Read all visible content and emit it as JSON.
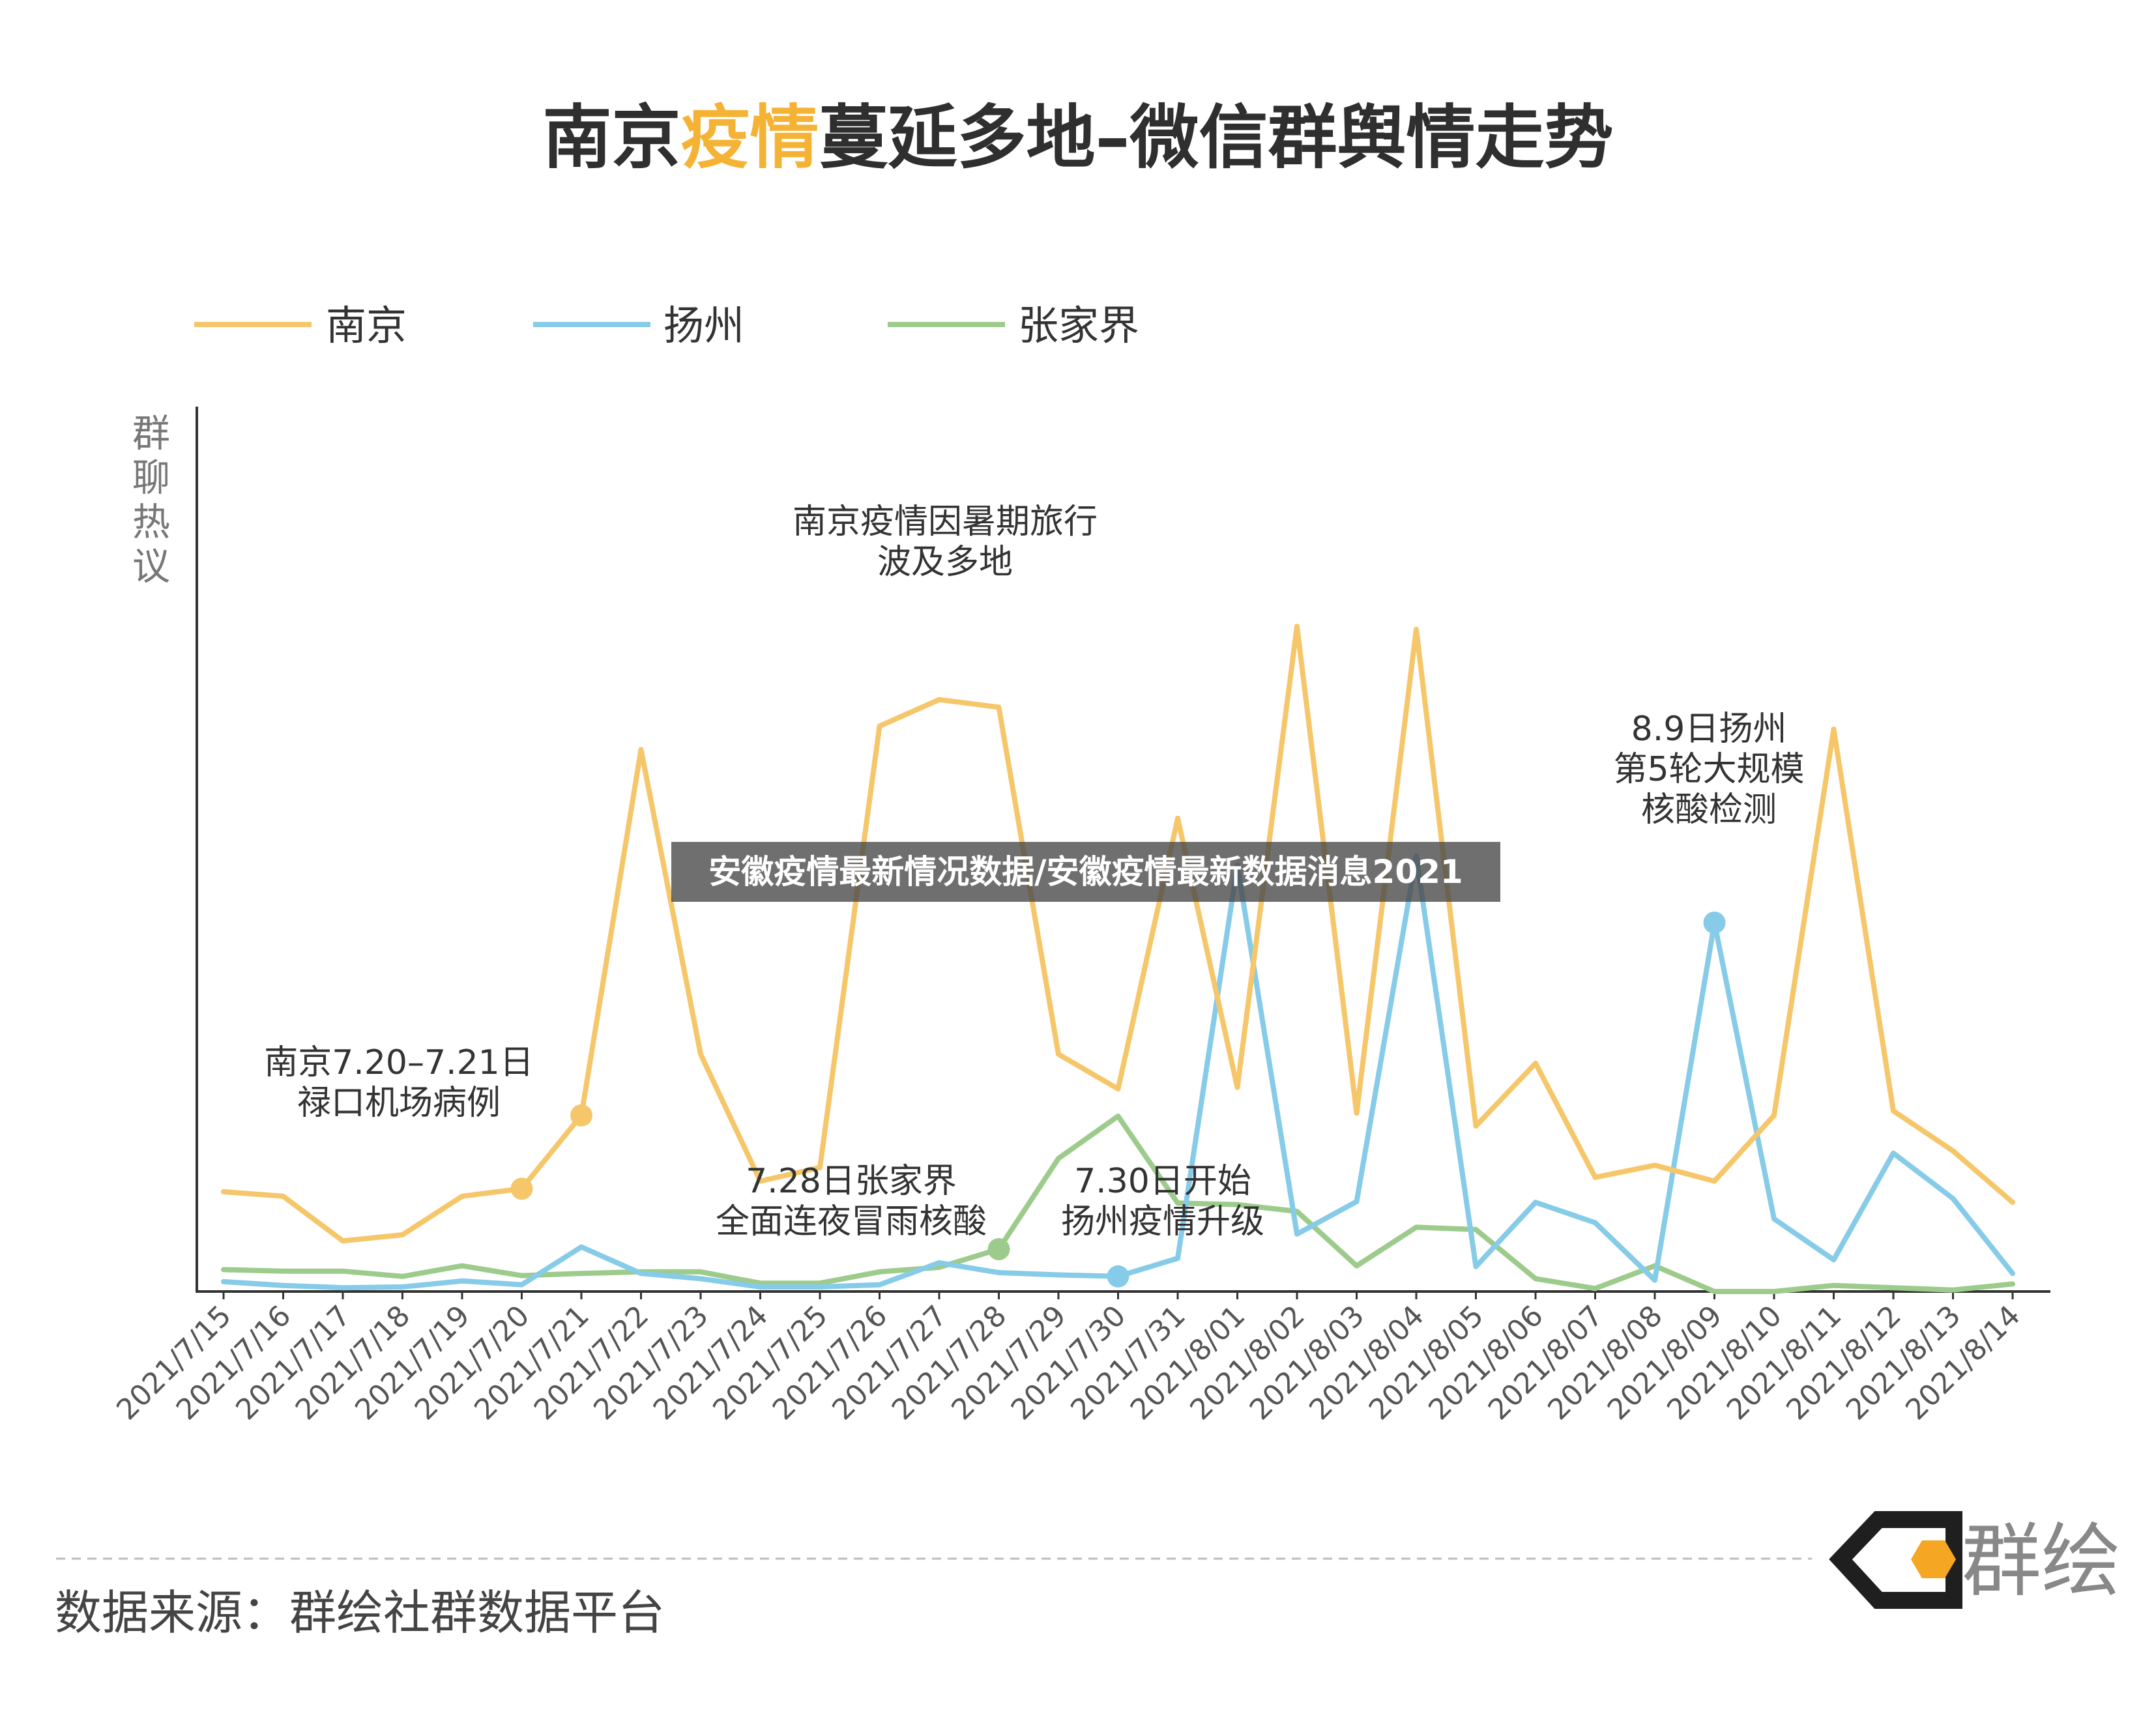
{
  "title": {
    "part1": "南京",
    "highlight": "疫情",
    "part2": "蔓延多地–微信群舆情走势"
  },
  "colors": {
    "nanjing": "#f5c76a",
    "yangzhou": "#86cbe8",
    "zhangjiajie": "#9dcb8c",
    "highlight": "#f5b335",
    "axis": "#333333",
    "logo_black": "#1f1f1f",
    "logo_orange": "#f5a623"
  },
  "chart_data": {
    "type": "line",
    "ylabel": "群聊热议",
    "legend_position": "top-left",
    "grid": false,
    "ylim": [
      0,
      100
    ],
    "x": [
      "2021/7/15",
      "2021/7/16",
      "2021/7/17",
      "2021/7/18",
      "2021/7/19",
      "2021/7/20",
      "2021/7/21",
      "2021/7/22",
      "2021/7/23",
      "2021/7/24",
      "2021/7/25",
      "2021/7/26",
      "2021/7/27",
      "2021/7/28",
      "2021/7/29",
      "2021/7/30",
      "2021/7/31",
      "2021/8/01",
      "2021/8/02",
      "2021/8/03",
      "2021/8/04",
      "2021/8/05",
      "2021/8/06",
      "2021/8/07",
      "2021/8/08",
      "2021/8/09",
      "2021/8/10",
      "2021/8/11",
      "2021/8/12",
      "2021/8/13",
      "2021/8/14"
    ],
    "series": [
      {
        "name": "南京",
        "color": "#f5c76a",
        "values": [
          13.2,
          12.6,
          6.7,
          7.5,
          12.6,
          13.6,
          23.3,
          71.7,
          31.4,
          14.6,
          16.4,
          74.8,
          78.3,
          77.3,
          31.4,
          26.8,
          62.6,
          27.0,
          88.0,
          23.6,
          87.6,
          21.9,
          30.2,
          15.1,
          16.7,
          14.6,
          23.3,
          74.4,
          23.9,
          18.6,
          11.8
        ],
        "markers": [
          5,
          6
        ]
      },
      {
        "name": "扬州",
        "color": "#86cbe8",
        "values": [
          1.3,
          0.8,
          0.5,
          0.6,
          1.4,
          0.9,
          5.9,
          2.4,
          1.7,
          0.6,
          0.6,
          0.9,
          3.8,
          2.5,
          2.2,
          2.0,
          4.4,
          56.4,
          7.6,
          11.9,
          57.6,
          3.3,
          11.8,
          9.1,
          1.5,
          48.8,
          9.6,
          4.2,
          18.3,
          12.3,
          2.4
        ],
        "markers": [
          15,
          25
        ]
      },
      {
        "name": "张家界",
        "color": "#9dcb8c",
        "values": [
          2.9,
          2.7,
          2.7,
          2.0,
          3.4,
          2.1,
          2.4,
          2.6,
          2.6,
          1.1,
          1.1,
          2.6,
          3.2,
          5.6,
          17.6,
          23.2,
          11.7,
          11.5,
          10.6,
          3.4,
          8.5,
          8.2,
          1.7,
          0.4,
          3.4,
          0.0,
          0.0,
          0.8,
          0.5,
          0.2,
          1.0
        ],
        "markers": [
          13
        ]
      }
    ],
    "annotations": [
      {
        "lines": [
          "南京7.20–7.21日",
          "禄口机场病例"
        ]
      },
      {
        "lines": [
          "南京疫情因暑期旅行",
          "波及多地"
        ]
      },
      {
        "lines": [
          "7.28日张家界",
          "全面连夜冒雨核酸"
        ]
      },
      {
        "lines": [
          "7.30日开始",
          "扬州疫情升级"
        ]
      },
      {
        "lines": [
          "8.9日扬州",
          "第5轮大规模",
          "核酸检测"
        ]
      }
    ]
  },
  "banner": "安徽疫情最新情况数据/安徽疫情最新数据消息2021",
  "footer": {
    "source": "数据来源：群绘社群数据平台",
    "logo_text": "群绘"
  }
}
